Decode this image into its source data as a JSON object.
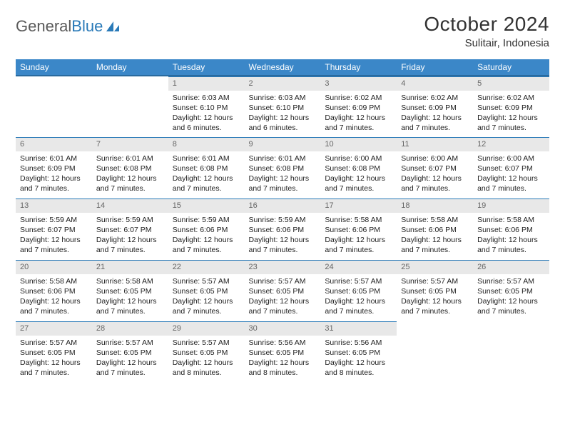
{
  "brand": {
    "part1": "General",
    "part2": "Blue"
  },
  "title": "October 2024",
  "location": "Sulitair, Indonesia",
  "colors": {
    "header_bg": "#3b87c8",
    "header_border": "#296a9e",
    "daynum_bg": "#e8e8e8",
    "row_top_border": "#2a7ab8",
    "brand_blue": "#2a7ab8",
    "brand_gray": "#5a5a5a"
  },
  "weekdays": [
    "Sunday",
    "Monday",
    "Tuesday",
    "Wednesday",
    "Thursday",
    "Friday",
    "Saturday"
  ],
  "first_weekday_index": 2,
  "days": [
    {
      "n": 1,
      "sunrise": "6:03 AM",
      "sunset": "6:10 PM",
      "daylight": "12 hours and 6 minutes."
    },
    {
      "n": 2,
      "sunrise": "6:03 AM",
      "sunset": "6:10 PM",
      "daylight": "12 hours and 6 minutes."
    },
    {
      "n": 3,
      "sunrise": "6:02 AM",
      "sunset": "6:09 PM",
      "daylight": "12 hours and 7 minutes."
    },
    {
      "n": 4,
      "sunrise": "6:02 AM",
      "sunset": "6:09 PM",
      "daylight": "12 hours and 7 minutes."
    },
    {
      "n": 5,
      "sunrise": "6:02 AM",
      "sunset": "6:09 PM",
      "daylight": "12 hours and 7 minutes."
    },
    {
      "n": 6,
      "sunrise": "6:01 AM",
      "sunset": "6:09 PM",
      "daylight": "12 hours and 7 minutes."
    },
    {
      "n": 7,
      "sunrise": "6:01 AM",
      "sunset": "6:08 PM",
      "daylight": "12 hours and 7 minutes."
    },
    {
      "n": 8,
      "sunrise": "6:01 AM",
      "sunset": "6:08 PM",
      "daylight": "12 hours and 7 minutes."
    },
    {
      "n": 9,
      "sunrise": "6:01 AM",
      "sunset": "6:08 PM",
      "daylight": "12 hours and 7 minutes."
    },
    {
      "n": 10,
      "sunrise": "6:00 AM",
      "sunset": "6:08 PM",
      "daylight": "12 hours and 7 minutes."
    },
    {
      "n": 11,
      "sunrise": "6:00 AM",
      "sunset": "6:07 PM",
      "daylight": "12 hours and 7 minutes."
    },
    {
      "n": 12,
      "sunrise": "6:00 AM",
      "sunset": "6:07 PM",
      "daylight": "12 hours and 7 minutes."
    },
    {
      "n": 13,
      "sunrise": "5:59 AM",
      "sunset": "6:07 PM",
      "daylight": "12 hours and 7 minutes."
    },
    {
      "n": 14,
      "sunrise": "5:59 AM",
      "sunset": "6:07 PM",
      "daylight": "12 hours and 7 minutes."
    },
    {
      "n": 15,
      "sunrise": "5:59 AM",
      "sunset": "6:06 PM",
      "daylight": "12 hours and 7 minutes."
    },
    {
      "n": 16,
      "sunrise": "5:59 AM",
      "sunset": "6:06 PM",
      "daylight": "12 hours and 7 minutes."
    },
    {
      "n": 17,
      "sunrise": "5:58 AM",
      "sunset": "6:06 PM",
      "daylight": "12 hours and 7 minutes."
    },
    {
      "n": 18,
      "sunrise": "5:58 AM",
      "sunset": "6:06 PM",
      "daylight": "12 hours and 7 minutes."
    },
    {
      "n": 19,
      "sunrise": "5:58 AM",
      "sunset": "6:06 PM",
      "daylight": "12 hours and 7 minutes."
    },
    {
      "n": 20,
      "sunrise": "5:58 AM",
      "sunset": "6:06 PM",
      "daylight": "12 hours and 7 minutes."
    },
    {
      "n": 21,
      "sunrise": "5:58 AM",
      "sunset": "6:05 PM",
      "daylight": "12 hours and 7 minutes."
    },
    {
      "n": 22,
      "sunrise": "5:57 AM",
      "sunset": "6:05 PM",
      "daylight": "12 hours and 7 minutes."
    },
    {
      "n": 23,
      "sunrise": "5:57 AM",
      "sunset": "6:05 PM",
      "daylight": "12 hours and 7 minutes."
    },
    {
      "n": 24,
      "sunrise": "5:57 AM",
      "sunset": "6:05 PM",
      "daylight": "12 hours and 7 minutes."
    },
    {
      "n": 25,
      "sunrise": "5:57 AM",
      "sunset": "6:05 PM",
      "daylight": "12 hours and 7 minutes."
    },
    {
      "n": 26,
      "sunrise": "5:57 AM",
      "sunset": "6:05 PM",
      "daylight": "12 hours and 7 minutes."
    },
    {
      "n": 27,
      "sunrise": "5:57 AM",
      "sunset": "6:05 PM",
      "daylight": "12 hours and 7 minutes."
    },
    {
      "n": 28,
      "sunrise": "5:57 AM",
      "sunset": "6:05 PM",
      "daylight": "12 hours and 7 minutes."
    },
    {
      "n": 29,
      "sunrise": "5:57 AM",
      "sunset": "6:05 PM",
      "daylight": "12 hours and 8 minutes."
    },
    {
      "n": 30,
      "sunrise": "5:56 AM",
      "sunset": "6:05 PM",
      "daylight": "12 hours and 8 minutes."
    },
    {
      "n": 31,
      "sunrise": "5:56 AM",
      "sunset": "6:05 PM",
      "daylight": "12 hours and 8 minutes."
    }
  ],
  "labels": {
    "sunrise": "Sunrise:",
    "sunset": "Sunset:",
    "daylight": "Daylight:"
  }
}
